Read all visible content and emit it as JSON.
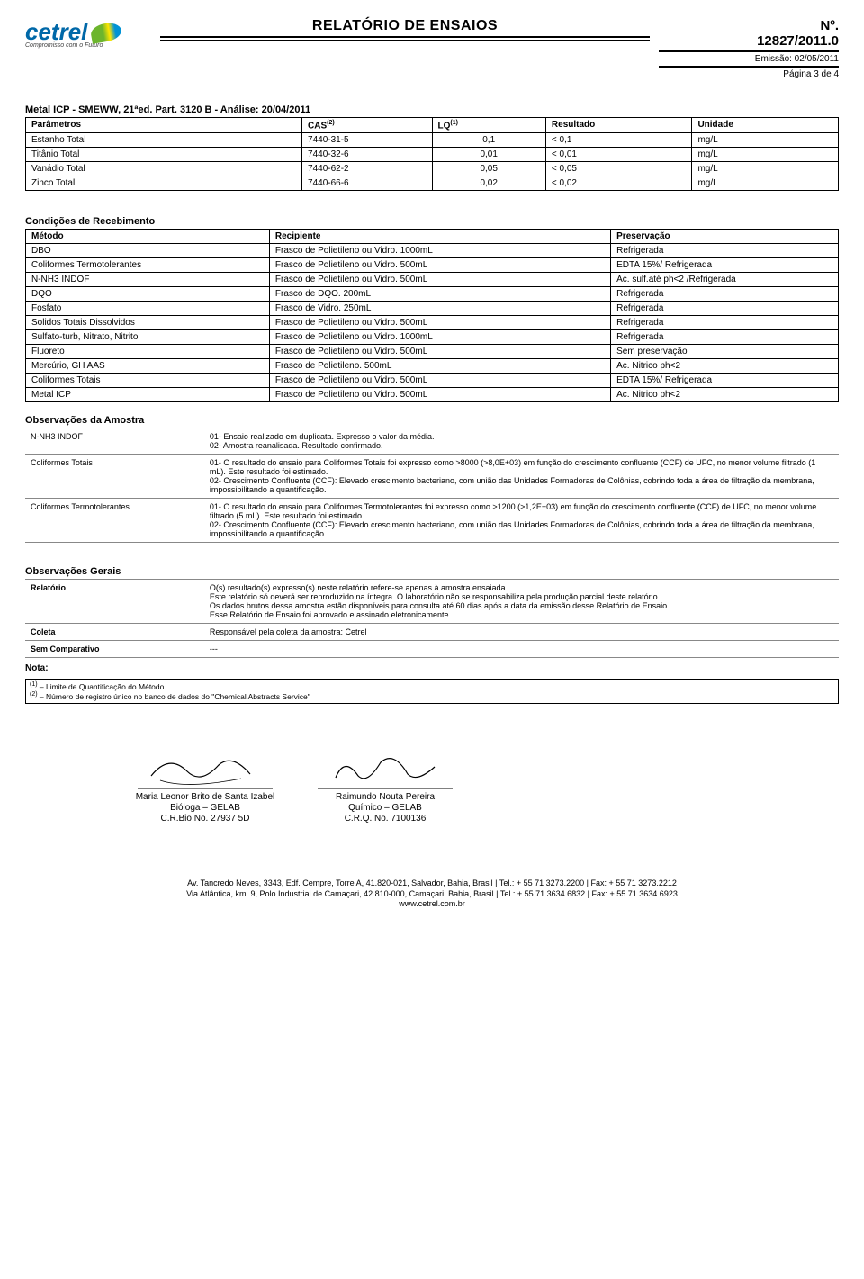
{
  "header": {
    "logo_text": "cetrel",
    "logo_tagline": "Compromisso com o Futuro",
    "report_title": "RELATÓRIO DE ENSAIOS",
    "no_label": "Nº.",
    "report_no": "12827/2011.0",
    "emission_label": "Emissão: 02/05/2011",
    "page_label": "Página 3 de 4"
  },
  "block1": {
    "title": "Metal ICP - SMEWW, 21ªed. Part. 3120 B - Análise: 20/04/2011",
    "columns": [
      "Parâmetros",
      "CAS",
      "LQ",
      "Resultado",
      "Unidade"
    ],
    "col_sup": {
      "cas": "(2)",
      "lq": "(1)"
    },
    "rows": [
      {
        "p": "Estanho Total",
        "cas": "7440-31-5",
        "lq": "0,1",
        "res": "< 0,1",
        "uni": "mg/L"
      },
      {
        "p": "Titânio Total",
        "cas": "7440-32-6",
        "lq": "0,01",
        "res": "< 0,01",
        "uni": "mg/L"
      },
      {
        "p": "Vanádio Total",
        "cas": "7440-62-2",
        "lq": "0,05",
        "res": "< 0,05",
        "uni": "mg/L"
      },
      {
        "p": "Zinco Total",
        "cas": "7440-66-6",
        "lq": "0,02",
        "res": "< 0,02",
        "uni": "mg/L"
      }
    ]
  },
  "block2": {
    "title": "Condições de Recebimento",
    "columns": [
      "Método",
      "Recipiente",
      "Preservação"
    ],
    "rows": [
      {
        "m": "DBO",
        "r": "Frasco de Polietileno ou Vidro. 1000mL",
        "p": "Refrigerada"
      },
      {
        "m": "Coliformes Termotolerantes",
        "r": "Frasco de Polietileno ou Vidro. 500mL",
        "p": "EDTA 15%/ Refrigerada"
      },
      {
        "m": "N-NH3 INDOF",
        "r": "Frasco de Polietileno ou Vidro. 500mL",
        "p": "Ac. sulf.até ph<2 /Refrigerada"
      },
      {
        "m": "DQO",
        "r": "Frasco de DQO. 200mL",
        "p": "Refrigerada"
      },
      {
        "m": "Fosfato",
        "r": "Frasco de Vidro. 250mL",
        "p": "Refrigerada"
      },
      {
        "m": "Solidos Totais Dissolvidos",
        "r": "Frasco de Polietileno ou Vidro. 500mL",
        "p": "Refrigerada"
      },
      {
        "m": "Sulfato-turb, Nitrato, Nitrito",
        "r": "Frasco de Polietileno ou Vidro. 1000mL",
        "p": "Refrigerada"
      },
      {
        "m": "Fluoreto",
        "r": "Frasco de Polietileno ou Vidro. 500mL",
        "p": "Sem preservação"
      },
      {
        "m": "Mercúrio, GH AAS",
        "r": "Frasco de Polietileno. 500mL",
        "p": "Ac. Nitrico ph<2"
      },
      {
        "m": "Coliformes Totais",
        "r": "Frasco de Polietileno ou Vidro. 500mL",
        "p": "EDTA 15%/ Refrigerada"
      },
      {
        "m": "Metal ICP",
        "r": "Frasco de Polietileno ou Vidro. 500mL",
        "p": "Ac. Nitrico ph<2"
      }
    ]
  },
  "obs_amostra": {
    "title": "Observações da Amostra",
    "rows": [
      {
        "k": "N-NH3 INDOF",
        "v": "01- Ensaio realizado em duplicata. Expresso o valor da média.\n02- Amostra reanalisada. Resultado confirmado."
      },
      {
        "k": "Coliformes Totais",
        "v": "01- O resultado do ensaio para Coliformes Totais foi expresso como >8000 (>8,0E+03) em função do crescimento confluente (CCF) de UFC, no menor volume filtrado (1 mL). Este resultado foi estimado.\n02- Crescimento Confluente (CCF): Elevado crescimento bacteriano, com união das Unidades Formadoras de Colônias, cobrindo toda a área de filtração da membrana, impossibilitando a quantificação."
      },
      {
        "k": "Coliformes Termotolerantes",
        "v": "01- O resultado do ensaio para Coliformes Termotolerantes foi expresso como >1200 (>1,2E+03) em função do crescimento confluente (CCF) de UFC, no menor volume filtrado (5 mL). Este resultado foi estimado.\n02- Crescimento Confluente (CCF): Elevado crescimento bacteriano, com união das Unidades Formadoras de Colônias, cobrindo toda a área de filtração da membrana, impossibilitando a quantificação."
      }
    ]
  },
  "obs_gerais": {
    "title": "Observações Gerais",
    "rows": [
      {
        "k": "Relatório",
        "v": "O(s) resultado(s) expresso(s) neste relatório refere-se apenas à amostra ensaiada.\nEste relatório só deverá ser reproduzido na íntegra. O laboratório não se responsabiliza pela produção parcial deste relatório.\nOs dados brutos dessa amostra estão disponíveis para consulta até 60 dias após a data da emissão desse Relatório de Ensaio.\nEsse Relatório de Ensaio foi aprovado e assinado eletronicamente."
      },
      {
        "k": "Coleta",
        "v": "Responsável pela coleta da amostra: Cetrel"
      },
      {
        "k": "Sem Comparativo",
        "v": "---"
      }
    ]
  },
  "nota": {
    "title": "Nota:",
    "l1sup": "(1)",
    "l1": " – Limite de Quantificação do Método.",
    "l2sup": "(2)",
    "l2": " – Número de registro único no banco de dados do \"Chemical Abstracts Service\""
  },
  "signatures": {
    "left": {
      "name": "Maria Leonor Brito de Santa Izabel",
      "role": "Bióloga – GELAB",
      "reg": "C.R.Bio No. 27937 5D"
    },
    "right": {
      "name": "Raimundo Nouta Pereira",
      "role": "Químico – GELAB",
      "reg": "C.R.Q. No. 7100136"
    }
  },
  "footer": {
    "l1": "Av. Tancredo Neves, 3343, Edf. Cempre, Torre A, 41.820-021, Salvador, Bahia, Brasil   |   Tel.: + 55 71 3273.2200   |   Fax: + 55 71 3273.2212",
    "l2": "Via Atlântica, km. 9, Polo Industrial de Camaçari, 42.810-000, Camaçari, Bahia, Brasil  | Tel.: + 55 71 3634.6832   |   Fax: + 55 71 3634.6923",
    "l3": "www.cetrel.com.br"
  }
}
